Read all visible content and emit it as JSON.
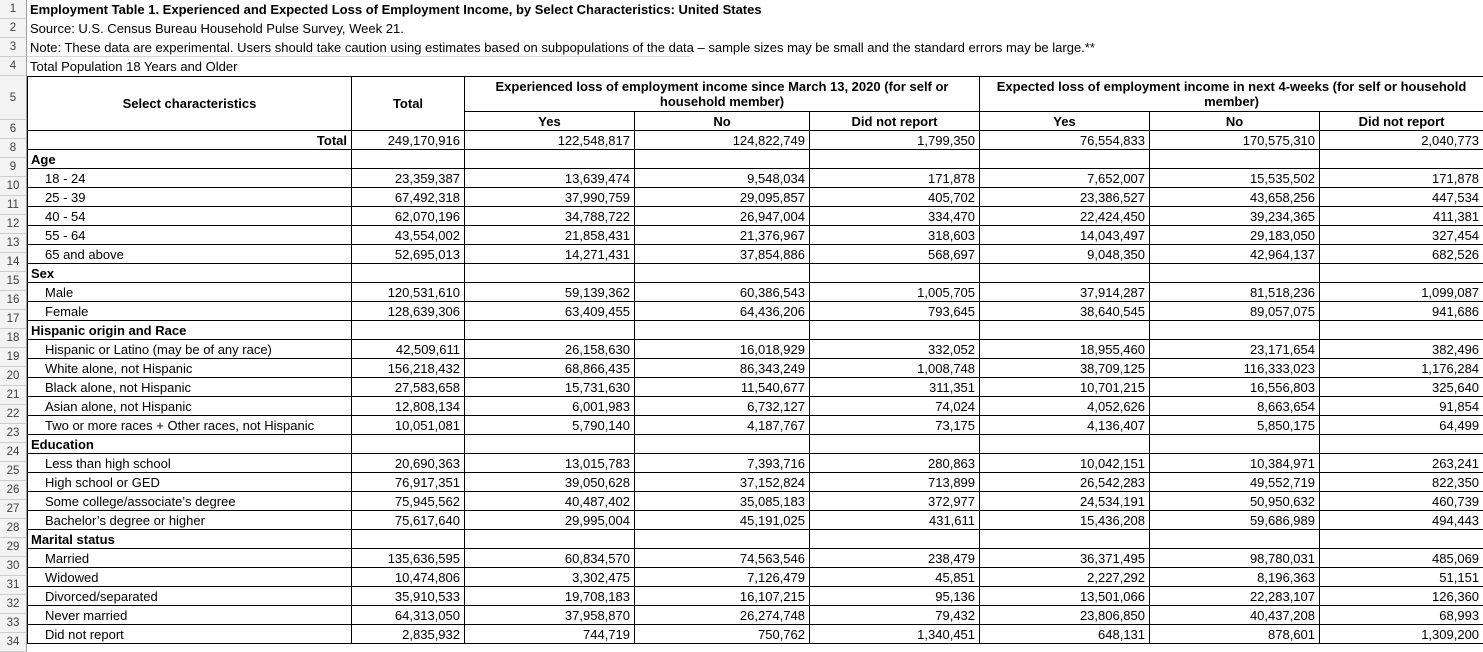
{
  "colors": {
    "table_border": "#000000",
    "gutter_bg": "#f3f3f3",
    "gutter_line": "#cdcdcd",
    "gutter_edge": "#9e9e9e",
    "text": "#000000"
  },
  "sheet": {
    "row_numbers": [
      "1",
      "2",
      "3",
      "4",
      "5",
      "6",
      "8",
      "9",
      "10",
      "11",
      "12",
      "13",
      "14",
      "15",
      "16",
      "17",
      "18",
      "19",
      "20",
      "21",
      "22",
      "23",
      "24",
      "25",
      "26",
      "27",
      "28",
      "29",
      "30",
      "31",
      "32",
      "33",
      "34"
    ],
    "meta": {
      "title": "Employment Table 1. Experienced and Expected Loss of Employment Income, by Select Characteristics: United States",
      "source": "Source: U.S. Census Bureau Household Pulse Survey, Week 21.",
      "note": "Note: These data are experimental. Users should take caution using estimates based on subpopulations of the data – sample sizes may be small and the standard errors may be large.**",
      "population": "Total Population 18 Years and Older"
    },
    "table": {
      "col_select": "Select characteristics",
      "col_total": "Total",
      "group1": "Experienced loss of employment income since March 13, 2020 (for self or household member)",
      "group2": "Expected loss of employment income in next 4-weeks (for self or household member)",
      "subheaders": [
        "Yes",
        "No",
        "Did not report",
        "Yes",
        "No",
        "Did not report"
      ],
      "total_row": {
        "label": "Total",
        "values": [
          "249,170,916",
          "122,548,817",
          "124,822,749",
          "1,799,350",
          "76,554,833",
          "170,575,310",
          "2,040,773"
        ]
      },
      "sections": [
        {
          "name": "Age",
          "rows": [
            {
              "label": "18 - 24",
              "values": [
                "23,359,387",
                "13,639,474",
                "9,548,034",
                "171,878",
                "7,652,007",
                "15,535,502",
                "171,878"
              ]
            },
            {
              "label": "25 - 39",
              "values": [
                "67,492,318",
                "37,990,759",
                "29,095,857",
                "405,702",
                "23,386,527",
                "43,658,256",
                "447,534"
              ]
            },
            {
              "label": "40 - 54",
              "values": [
                "62,070,196",
                "34,788,722",
                "26,947,004",
                "334,470",
                "22,424,450",
                "39,234,365",
                "411,381"
              ]
            },
            {
              "label": "55 - 64",
              "values": [
                "43,554,002",
                "21,858,431",
                "21,376,967",
                "318,603",
                "14,043,497",
                "29,183,050",
                "327,454"
              ]
            },
            {
              "label": "65 and above",
              "values": [
                "52,695,013",
                "14,271,431",
                "37,854,886",
                "568,697",
                "9,048,350",
                "42,964,137",
                "682,526"
              ]
            }
          ]
        },
        {
          "name": "Sex",
          "rows": [
            {
              "label": "Male",
              "values": [
                "120,531,610",
                "59,139,362",
                "60,386,543",
                "1,005,705",
                "37,914,287",
                "81,518,236",
                "1,099,087"
              ]
            },
            {
              "label": "Female",
              "values": [
                "128,639,306",
                "63,409,455",
                "64,436,206",
                "793,645",
                "38,640,545",
                "89,057,075",
                "941,686"
              ]
            }
          ]
        },
        {
          "name": "Hispanic origin and Race",
          "rows": [
            {
              "label": "Hispanic or Latino (may be of any race)",
              "values": [
                "42,509,611",
                "26,158,630",
                "16,018,929",
                "332,052",
                "18,955,460",
                "23,171,654",
                "382,496"
              ]
            },
            {
              "label": "White alone, not Hispanic",
              "values": [
                "156,218,432",
                "68,866,435",
                "86,343,249",
                "1,008,748",
                "38,709,125",
                "116,333,023",
                "1,176,284"
              ]
            },
            {
              "label": "Black alone, not Hispanic",
              "values": [
                "27,583,658",
                "15,731,630",
                "11,540,677",
                "311,351",
                "10,701,215",
                "16,556,803",
                "325,640"
              ]
            },
            {
              "label": "Asian alone, not Hispanic",
              "values": [
                "12,808,134",
                "6,001,983",
                "6,732,127",
                "74,024",
                "4,052,626",
                "8,663,654",
                "91,854"
              ]
            },
            {
              "label": "Two or more races + Other races, not Hispanic",
              "values": [
                "10,051,081",
                "5,790,140",
                "4,187,767",
                "73,175",
                "4,136,407",
                "5,850,175",
                "64,499"
              ]
            }
          ]
        },
        {
          "name": "Education",
          "rows": [
            {
              "label": "Less than high school",
              "values": [
                "20,690,363",
                "13,015,783",
                "7,393,716",
                "280,863",
                "10,042,151",
                "10,384,971",
                "263,241"
              ]
            },
            {
              "label": "High school or GED",
              "values": [
                "76,917,351",
                "39,050,628",
                "37,152,824",
                "713,899",
                "26,542,283",
                "49,552,719",
                "822,350"
              ]
            },
            {
              "label": "Some college/associate’s degree",
              "values": [
                "75,945,562",
                "40,487,402",
                "35,085,183",
                "372,977",
                "24,534,191",
                "50,950,632",
                "460,739"
              ]
            },
            {
              "label": "Bachelor’s degree or higher",
              "values": [
                "75,617,640",
                "29,995,004",
                "45,191,025",
                "431,611",
                "15,436,208",
                "59,686,989",
                "494,443"
              ]
            }
          ]
        },
        {
          "name": "Marital status",
          "rows": [
            {
              "label": "Married",
              "values": [
                "135,636,595",
                "60,834,570",
                "74,563,546",
                "238,479",
                "36,371,495",
                "98,780,031",
                "485,069"
              ]
            },
            {
              "label": "Widowed",
              "values": [
                "10,474,806",
                "3,302,475",
                "7,126,479",
                "45,851",
                "2,227,292",
                "8,196,363",
                "51,151"
              ]
            },
            {
              "label": "Divorced/separated",
              "values": [
                "35,910,533",
                "19,708,183",
                "16,107,215",
                "95,136",
                "13,501,066",
                "22,283,107",
                "126,360"
              ]
            },
            {
              "label": "Never married",
              "values": [
                "64,313,050",
                "37,958,870",
                "26,274,748",
                "79,432",
                "23,806,850",
                "40,437,208",
                "68,993"
              ]
            },
            {
              "label": "Did not report",
              "values": [
                "2,835,932",
                "744,719",
                "750,762",
                "1,340,451",
                "648,131",
                "878,601",
                "1,309,200"
              ]
            }
          ]
        }
      ]
    }
  }
}
